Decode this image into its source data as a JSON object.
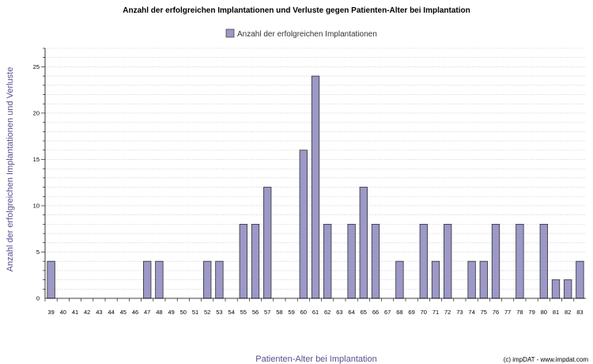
{
  "chart_data": {
    "type": "bar",
    "title": "Anzahl der erfolgreichen Implantationen und Verluste gegen Patienten-Alter bei Implantation",
    "xlabel": "Patienten-Alter bei Implantation",
    "ylabel": "Anzahl der erfolgreichen Implantationen und Verluste",
    "ylim": [
      0,
      27
    ],
    "yticks": [
      0,
      5,
      10,
      15,
      20,
      25
    ],
    "grid": true,
    "legend_position": "top-center",
    "series": [
      {
        "name": "Anzahl der erfolgreichen Implantationen",
        "color": "#9c98c8",
        "values": [
          4,
          0,
          0,
          0,
          0,
          0,
          0,
          0,
          4,
          4,
          0,
          0,
          0,
          4,
          4,
          0,
          8,
          8,
          12,
          0,
          0,
          16,
          24,
          8,
          0,
          8,
          12,
          8,
          0,
          4,
          0,
          8,
          4,
          8,
          0,
          4,
          4,
          8,
          0,
          8,
          0,
          8,
          2,
          2,
          4
        ]
      }
    ],
    "categories": [
      "39",
      "40",
      "41",
      "42",
      "43",
      "44",
      "45",
      "46",
      "47",
      "48",
      "49",
      "50",
      "51",
      "52",
      "53",
      "54",
      "55",
      "56",
      "57",
      "58",
      "59",
      "60",
      "61",
      "62",
      "63",
      "64",
      "65",
      "66",
      "67",
      "68",
      "69",
      "70",
      "71",
      "72",
      "73",
      "74",
      "75",
      "76",
      "77",
      "78",
      "79",
      "80",
      "81",
      "82",
      "83"
    ]
  },
  "credit": "(c) impDAT - www.impdat.com"
}
